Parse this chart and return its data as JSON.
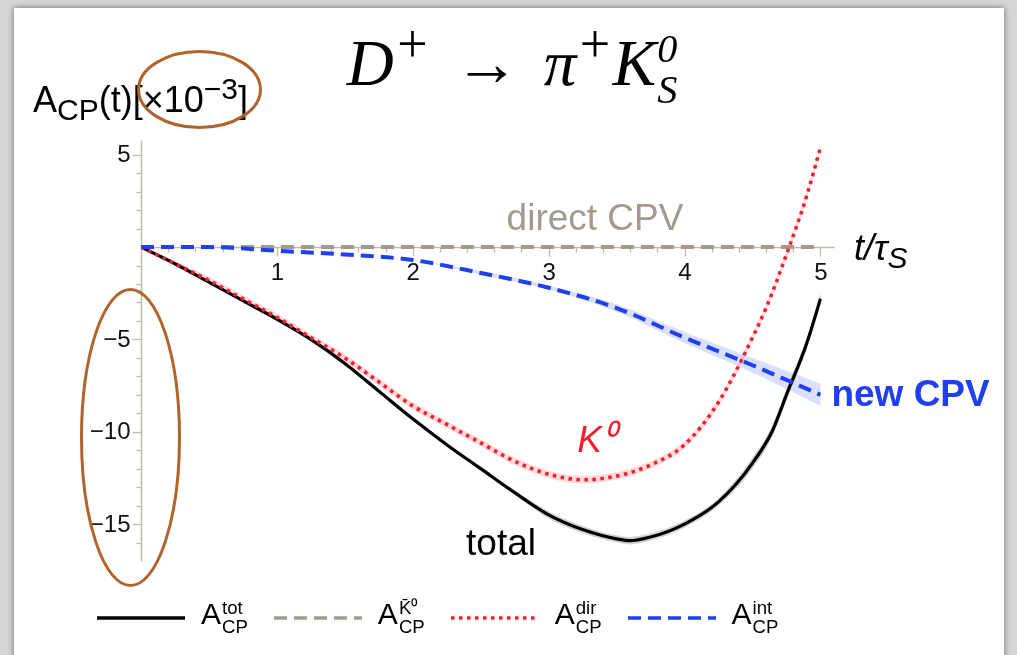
{
  "chart_data": {
    "type": "line",
    "title": "D$^{+}$ → π$^{+}$K$^{0}$$_{S}$",
    "xlabel": "t/τ$_{S}$",
    "ylabel": "A$_{CP}$(t)[×10$^{−3}$]",
    "xlim": [
      0,
      5.1
    ],
    "ylim": [
      -17,
      5.8
    ],
    "xticks": [
      {
        "value": 0.2,
        "label": null
      },
      {
        "value": 0.4,
        "label": null
      },
      {
        "value": 0.6,
        "label": null
      },
      {
        "value": 0.8,
        "label": null
      },
      1,
      {
        "value": 1.2,
        "label": null
      },
      {
        "value": 1.4,
        "label": null
      },
      {
        "value": 1.6,
        "label": null
      },
      {
        "value": 1.8,
        "label": null
      },
      2,
      {
        "value": 2.2,
        "label": null
      },
      {
        "value": 2.4,
        "label": null
      },
      {
        "value": 2.6,
        "label": null
      },
      {
        "value": 2.8,
        "label": null
      },
      3,
      {
        "value": 3.2,
        "label": null
      },
      {
        "value": 3.4,
        "label": null
      },
      {
        "value": 3.6,
        "label": null
      },
      {
        "value": 3.8,
        "label": null
      },
      4,
      {
        "value": 4.2,
        "label": null
      },
      {
        "value": 4.4,
        "label": null
      },
      {
        "value": 4.6,
        "label": null
      },
      {
        "value": 4.8,
        "label": null
      },
      5
    ],
    "yticks": [
      {
        "value": -16,
        "label": null
      },
      {
        "value": -15,
        "label": "−15"
      },
      {
        "value": -14,
        "label": null
      },
      {
        "value": -13,
        "label": null
      },
      {
        "value": -12,
        "label": null
      },
      {
        "value": -11,
        "label": null
      },
      {
        "value": -10,
        "label": "−10"
      },
      {
        "value": -9,
        "label": null
      },
      {
        "value": -8,
        "label": null
      },
      {
        "value": -7,
        "label": null
      },
      {
        "value": -6,
        "label": null
      },
      {
        "value": -5,
        "label": "−5"
      },
      {
        "value": -4,
        "label": null
      },
      {
        "value": -3,
        "label": null
      },
      {
        "value": -2,
        "label": null
      },
      {
        "value": -1,
        "label": null
      },
      {
        "value": 1,
        "label": null
      },
      {
        "value": 2,
        "label": null
      },
      {
        "value": 3,
        "label": null
      },
      {
        "value": 4,
        "label": null
      },
      5
    ],
    "series": [
      {
        "name": "A$^{tot}$$_{CP}$",
        "color": "#000000",
        "line_style": "solid",
        "x": [
          0,
          0.25,
          0.5,
          0.75,
          1,
          1.25,
          1.5,
          1.75,
          2,
          2.25,
          2.5,
          2.75,
          3,
          3.25,
          3.5,
          3.6,
          3.75,
          4,
          4.25,
          4.5,
          4.65,
          4.75,
          4.9,
          5
        ],
        "values": [
          0,
          -0.9,
          -1.9,
          -2.9,
          -3.9,
          -5.0,
          -6.3,
          -7.8,
          -9.3,
          -10.7,
          -12.0,
          -13.3,
          -14.5,
          -15.3,
          -15.8,
          -15.9,
          -15.7,
          -15.0,
          -13.8,
          -11.7,
          -9.9,
          -8.0,
          -5.2,
          -2.8
        ],
        "lower": [
          0,
          -0.9,
          -1.9,
          -3.0,
          -4.0,
          -5.1,
          -6.4,
          -7.9,
          -9.4,
          -10.8,
          -12.1,
          -13.4,
          -14.7,
          -15.5,
          -16.0,
          -16.1,
          -15.9,
          -15.2,
          -14.0,
          -12.0,
          -10.2,
          -8.3,
          -5.5,
          -3.1
        ],
        "upper": [
          0,
          -0.9,
          -1.9,
          -2.8,
          -3.8,
          -4.9,
          -6.2,
          -7.7,
          -9.2,
          -10.6,
          -11.9,
          -13.2,
          -14.3,
          -15.1,
          -15.6,
          -15.7,
          -15.5,
          -14.8,
          -13.6,
          -11.4,
          -9.6,
          -7.7,
          -4.9,
          -2.5
        ]
      },
      {
        "name": "A$^{K̄⁰}$$_{CP}$",
        "color": "#a39a8f",
        "line_style": "dashed",
        "x": [
          0,
          5
        ],
        "values": [
          0,
          0
        ]
      },
      {
        "name": "A$^{dir}$$_{CP}$",
        "color": "#f2202e",
        "line_style": "dotted",
        "x": [
          0,
          0.25,
          0.5,
          0.75,
          1,
          1.25,
          1.5,
          1.75,
          2,
          2.25,
          2.5,
          2.75,
          3,
          3.25,
          3.5,
          3.75,
          4,
          4.25,
          4.5,
          4.6,
          4.75,
          4.9,
          5
        ],
        "values": [
          0,
          -0.9,
          -1.8,
          -2.8,
          -3.8,
          -4.9,
          -6.0,
          -7.3,
          -8.6,
          -9.6,
          -10.6,
          -11.6,
          -12.3,
          -12.6,
          -12.4,
          -11.8,
          -10.7,
          -8.4,
          -4.9,
          -3.3,
          -0.4,
          2.8,
          5.4
        ],
        "lower": [
          0,
          -1.0,
          -2.0,
          -3.0,
          -4.0,
          -5.1,
          -6.2,
          -7.5,
          -8.8,
          -9.8,
          -10.8,
          -11.8,
          -12.5,
          -12.8,
          -12.6,
          -12.0,
          -10.9,
          -8.6,
          -5.1,
          -3.5,
          -0.6,
          2.6,
          5.2
        ],
        "upper": [
          0,
          -0.8,
          -1.6,
          -2.6,
          -3.6,
          -4.7,
          -5.8,
          -7.1,
          -8.4,
          -9.4,
          -10.4,
          -11.4,
          -12.1,
          -12.4,
          -12.2,
          -11.6,
          -10.5,
          -8.2,
          -4.7,
          -3.1,
          -0.2,
          3.0,
          5.6
        ]
      },
      {
        "name": "A$^{int}$$_{CP}$",
        "color": "#2040f0",
        "line_style": "dashed",
        "x": [
          0,
          0.5,
          1,
          1.5,
          2,
          2.5,
          3,
          3.5,
          4,
          4.5,
          5
        ],
        "values": [
          0,
          0,
          -0.2,
          -0.4,
          -0.7,
          -1.4,
          -2.2,
          -3.3,
          -4.9,
          -6.4,
          -8.0
        ],
        "lower": [
          0,
          0,
          -0.2,
          -0.4,
          -0.7,
          -1.5,
          -2.3,
          -3.5,
          -5.2,
          -6.8,
          -8.6
        ],
        "upper": [
          0,
          0,
          -0.2,
          -0.4,
          -0.7,
          -1.3,
          -2.1,
          -3.1,
          -4.6,
          -6.0,
          -7.4
        ]
      }
    ],
    "annotations": [
      "total",
      "direct CPV",
      "K⁰",
      {
        "text": "new CPV",
        "x": 5,
        "y": -8.0
      }
    ],
    "legend": "bottom"
  }
}
